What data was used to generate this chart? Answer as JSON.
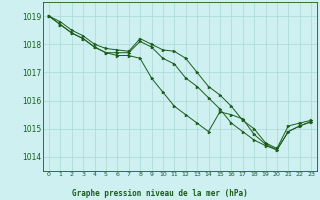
{
  "background_color": "#cff0f0",
  "grid_color": "#aad8d8",
  "line_color": "#1a5c1a",
  "marker_color": "#1a5c1a",
  "xlabel": "Graphe pression niveau de la mer (hPa)",
  "xlabel_color": "#1a5c1a",
  "tick_color": "#1a5c1a",
  "ylim": [
    1013.5,
    1019.5
  ],
  "xlim": [
    -0.5,
    23.5
  ],
  "yticks": [
    1014,
    1015,
    1016,
    1017,
    1018,
    1019
  ],
  "xticks": [
    0,
    1,
    2,
    3,
    4,
    5,
    6,
    7,
    8,
    9,
    10,
    11,
    12,
    13,
    14,
    15,
    16,
    17,
    18,
    19,
    20,
    21,
    22,
    23
  ],
  "series": [
    [
      1019.0,
      1018.8,
      1018.5,
      1018.3,
      1018.0,
      1017.85,
      1017.8,
      1017.75,
      1018.2,
      1018.0,
      1017.8,
      1017.75,
      1017.5,
      1017.0,
      1016.5,
      1016.2,
      1015.8,
      1015.3,
      1015.0,
      1014.5,
      1014.3,
      1015.1,
      1015.2,
      1015.3
    ],
    [
      1019.0,
      1018.7,
      1018.4,
      1018.2,
      1017.9,
      1017.7,
      1017.7,
      1017.7,
      1018.1,
      1017.9,
      1017.5,
      1017.3,
      1016.8,
      1016.5,
      1016.1,
      1015.7,
      1015.2,
      1014.9,
      1014.6,
      1014.4,
      1014.25,
      1014.9,
      1015.1,
      1015.25
    ],
    [
      1019.0,
      1018.7,
      1018.4,
      1018.2,
      1017.9,
      1017.7,
      1017.6,
      1017.6,
      1017.5,
      1016.8,
      1016.3,
      1015.8,
      1015.5,
      1015.2,
      1014.9,
      1015.6,
      1015.5,
      1015.35,
      1014.8,
      1014.45,
      1014.25,
      1014.9,
      1015.1,
      1015.25
    ]
  ]
}
